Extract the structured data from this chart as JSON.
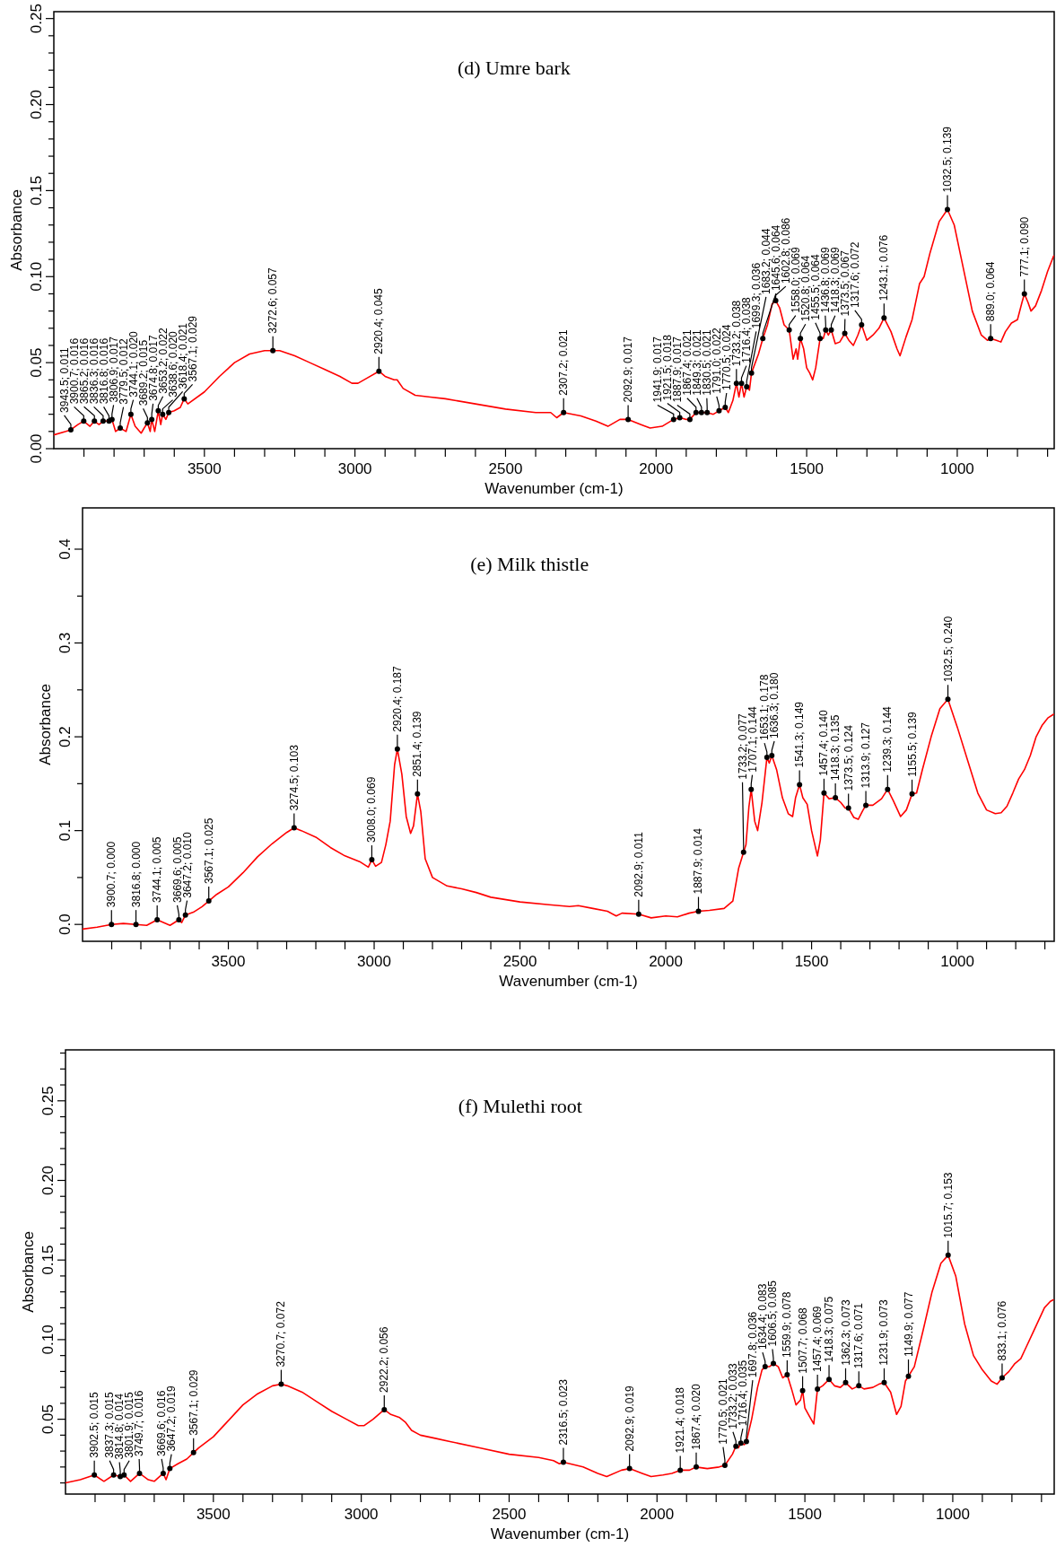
{
  "chart_data": [
    {
      "type": "line",
      "title": "(d) Umre bark",
      "xlabel": "Wavenumber (cm-1)",
      "ylabel": "Absorbance",
      "xlim": [
        4000,
        678
      ],
      "ylim": [
        0,
        0.254
      ],
      "xticks": [
        {
          "value": 3900,
          "label": null
        },
        {
          "value": 3800,
          "label": null
        },
        {
          "value": 3700,
          "label": null
        },
        {
          "value": 3600,
          "label": null
        },
        3500,
        {
          "value": 3400,
          "label": null
        },
        {
          "value": 3300,
          "label": null
        },
        {
          "value": 3200,
          "label": null
        },
        {
          "value": 3100,
          "label": null
        },
        3000,
        {
          "value": 2900,
          "label": null
        },
        {
          "value": 2800,
          "label": null
        },
        {
          "value": 2700,
          "label": null
        },
        {
          "value": 2600,
          "label": null
        },
        2500,
        {
          "value": 2400,
          "label": null
        },
        {
          "value": 2300,
          "label": null
        },
        {
          "value": 2200,
          "label": null
        },
        {
          "value": 2100,
          "label": null
        },
        2000,
        {
          "value": 1900,
          "label": null
        },
        {
          "value": 1800,
          "label": null
        },
        {
          "value": 1700,
          "label": null
        },
        {
          "value": 1600,
          "label": null
        },
        1500,
        {
          "value": 1400,
          "label": null
        },
        {
          "value": 1300,
          "label": null
        },
        {
          "value": 1200,
          "label": null
        },
        {
          "value": 1100,
          "label": null
        },
        1000,
        {
          "value": 900,
          "label": null
        },
        {
          "value": 800,
          "label": null
        },
        {
          "value": 700,
          "label": null
        }
      ],
      "yticks": [
        {
          "value": 0,
          "label": "0.00"
        },
        {
          "value": 0.01,
          "label": null
        },
        {
          "value": 0.02,
          "label": null
        },
        {
          "value": 0.03,
          "label": null
        },
        {
          "value": 0.04,
          "label": null
        },
        {
          "value": 0.05,
          "label": "0.05"
        },
        {
          "value": 0.06,
          "label": null
        },
        {
          "value": 0.07,
          "label": null
        },
        {
          "value": 0.08,
          "label": null
        },
        {
          "value": 0.09,
          "label": null
        },
        {
          "value": 0.1,
          "label": "0.10"
        },
        {
          "value": 0.11,
          "label": null
        },
        {
          "value": 0.12,
          "label": null
        },
        {
          "value": 0.13,
          "label": null
        },
        {
          "value": 0.14,
          "label": null
        },
        {
          "value": 0.15,
          "label": "0.15"
        },
        {
          "value": 0.16,
          "label": null
        },
        {
          "value": 0.17,
          "label": null
        },
        {
          "value": 0.18,
          "label": null
        },
        {
          "value": 0.19,
          "label": null
        },
        {
          "value": 0.2,
          "label": "0.20"
        },
        {
          "value": 0.21,
          "label": null
        },
        {
          "value": 0.22,
          "label": null
        },
        {
          "value": 0.23,
          "label": null
        },
        {
          "value": 0.24,
          "label": null
        },
        {
          "value": 0.25,
          "label": "0.25"
        }
      ],
      "series": [
        {
          "type": "line",
          "color": "#ff0000",
          "x": [
            4000,
            3960,
            3943.5,
            3920,
            3900.7,
            3880,
            3865.2,
            3850,
            3836.3,
            3816.8,
            3806.9,
            3795,
            3779.5,
            3760,
            3744.1,
            3730,
            3710,
            3700,
            3689.2,
            3680,
            3674.8,
            3665,
            3653.2,
            3645,
            3638.6,
            3628,
            3618.4,
            3600,
            3580,
            3567.1,
            3555,
            3500,
            3450,
            3400,
            3350,
            3300,
            3272.6,
            3250,
            3200,
            3150,
            3100,
            3050,
            3010,
            2990,
            2960,
            2920.4,
            2900,
            2870,
            2860,
            2840,
            2800,
            2750,
            2700,
            2600,
            2500,
            2400,
            2350,
            2330,
            2307.2,
            2250,
            2200,
            2160,
            2120,
            2092.9,
            2050,
            2020,
            1980,
            1941.9,
            1921.5,
            1900,
            1887.9,
            1867.4,
            1849.3,
            1830.5,
            1810,
            1791,
            1770.5,
            1760,
            1745,
            1733.2,
            1725,
            1716.4,
            1708,
            1699.3,
            1690,
            1683.2,
            1660,
            1645.6,
            1630,
            1615,
            1602.8,
            1590,
            1575,
            1558,
            1545,
            1535,
            1530,
            1520.8,
            1510,
            1500,
            1490,
            1480,
            1470,
            1455.5,
            1445,
            1436.8,
            1428,
            1418.3,
            1405,
            1390,
            1373.5,
            1360,
            1345,
            1330,
            1317.6,
            1300,
            1280,
            1260,
            1243.1,
            1220,
            1200,
            1190,
            1170,
            1150,
            1125,
            1110,
            1090,
            1060,
            1032.5,
            1010,
            980,
            950,
            920,
            900,
            889,
            870,
            855,
            840,
            820,
            800,
            785,
            777.1,
            765,
            755,
            740,
            720,
            700,
            680
          ],
          "values": [
            0.008,
            0.01,
            0.011,
            0.014,
            0.016,
            0.013,
            0.016,
            0.014,
            0.016,
            0.016,
            0.017,
            0.01,
            0.012,
            0.01,
            0.02,
            0.013,
            0.009,
            0.012,
            0.015,
            0.01,
            0.017,
            0.01,
            0.022,
            0.014,
            0.02,
            0.017,
            0.021,
            0.022,
            0.024,
            0.029,
            0.026,
            0.033,
            0.042,
            0.05,
            0.055,
            0.057,
            0.057,
            0.057,
            0.054,
            0.05,
            0.046,
            0.042,
            0.038,
            0.038,
            0.041,
            0.045,
            0.042,
            0.04,
            0.04,
            0.035,
            0.031,
            0.03,
            0.029,
            0.026,
            0.023,
            0.021,
            0.021,
            0.018,
            0.021,
            0.019,
            0.016,
            0.013,
            0.017,
            0.017,
            0.014,
            0.012,
            0.013,
            0.017,
            0.018,
            0.017,
            0.017,
            0.021,
            0.021,
            0.021,
            0.02,
            0.022,
            0.024,
            0.021,
            0.028,
            0.038,
            0.03,
            0.038,
            0.03,
            0.036,
            0.034,
            0.044,
            0.055,
            0.064,
            0.072,
            0.084,
            0.086,
            0.082,
            0.072,
            0.069,
            0.052,
            0.058,
            0.052,
            0.064,
            0.058,
            0.047,
            0.044,
            0.04,
            0.047,
            0.064,
            0.064,
            0.069,
            0.066,
            0.069,
            0.061,
            0.062,
            0.067,
            0.063,
            0.06,
            0.066,
            0.072,
            0.063,
            0.066,
            0.07,
            0.076,
            0.068,
            0.058,
            0.054,
            0.065,
            0.075,
            0.096,
            0.1,
            0.114,
            0.132,
            0.139,
            0.13,
            0.105,
            0.08,
            0.066,
            0.063,
            0.064,
            0.063,
            0.062,
            0.068,
            0.073,
            0.075,
            0.085,
            0.09,
            0.085,
            0.08,
            0.083,
            0.092,
            0.103,
            0.112
          ]
        },
        {
          "type": "scatter",
          "marker": "circle",
          "color": "#000000",
          "x": [
            3943.5,
            3900.7,
            3865.2,
            3836.3,
            3816.8,
            3806.9,
            3779.5,
            3744.1,
            3689.2,
            3674.8,
            3653.2,
            3638.6,
            3618.4,
            3567.1,
            3272.6,
            2920.4,
            2307.2,
            2092.9,
            1941.9,
            1921.5,
            1887.9,
            1867.4,
            1849.3,
            1830.5,
            1791.0,
            1770.5,
            1733.2,
            1716.4,
            1699.3,
            1683.2,
            1645.6,
            1602.8,
            1558.0,
            1520.8,
            1455.5,
            1436.8,
            1418.3,
            1373.5,
            1317.6,
            1243.1,
            1032.5,
            889.0,
            777.1
          ],
          "values": [
            0.011,
            0.016,
            0.016,
            0.016,
            0.016,
            0.017,
            0.012,
            0.02,
            0.015,
            0.017,
            0.022,
            0.02,
            0.021,
            0.029,
            0.057,
            0.045,
            0.021,
            0.017,
            0.017,
            0.018,
            0.017,
            0.021,
            0.021,
            0.021,
            0.022,
            0.024,
            0.038,
            0.038,
            0.036,
            0.044,
            0.064,
            0.086,
            0.069,
            0.064,
            0.064,
            0.069,
            0.069,
            0.067,
            0.072,
            0.076,
            0.139,
            0.064,
            0.09
          ],
          "value_labels": [
            "3943.5; 0.011",
            "3900.7; 0.016",
            "3865.2; 0.016",
            "3836.3; 0.016",
            "3816.8; 0.016",
            "3806.9; 0.017",
            "3779.5; 0.012",
            "3744.1; 0.020",
            "3689.2; 0.015",
            "3674.8; 0.017",
            "3653.2; 0.022",
            "3638.6; 0.020",
            "3618.4; 0.021",
            "3567.1; 0.029",
            "3272.6; 0.057",
            "2920.4; 0.045",
            "2307.2; 0.021",
            "2092.9; 0.017",
            "1941.9; 0.017",
            "1921.5; 0.018",
            "1887.9; 0.017",
            "1867.4; 0.021",
            "1849.3; 0.021",
            "1830.5; 0.021",
            "1791.0; 0.022",
            "1770.5; 0.024",
            "1733.2; 0.038",
            "1716.4; 0.038",
            "1699.3; 0.036",
            "1683.2; 0.044",
            "1645.6; 0.064",
            "1602.8; 0.086",
            "1558.0; 0.069",
            "1520.8; 0.064",
            "1455.5; 0.064",
            "1436.8; 0.069",
            "1418.3; 0.069",
            "1373.5; 0.067",
            "1317.6; 0.072",
            "1243.1; 0.076",
            "1032.5; 0.139",
            "889.0; 0.064",
            "777.1; 0.090"
          ]
        }
      ]
    },
    {
      "type": "line",
      "title": "(e) Milk thistle",
      "xlabel": "Wavenumber (cm-1)",
      "ylabel": "Absorbance",
      "xlim": [
        4000,
        668
      ],
      "ylim": [
        -0.018,
        0.444
      ],
      "xticks": [
        {
          "value": 3900,
          "label": null
        },
        {
          "value": 3800,
          "label": null
        },
        {
          "value": 3700,
          "label": null
        },
        {
          "value": 3600,
          "label": null
        },
        3500,
        {
          "value": 3400,
          "label": null
        },
        {
          "value": 3300,
          "label": null
        },
        {
          "value": 3200,
          "label": null
        },
        {
          "value": 3100,
          "label": null
        },
        3000,
        {
          "value": 2900,
          "label": null
        },
        {
          "value": 2800,
          "label": null
        },
        {
          "value": 2700,
          "label": null
        },
        {
          "value": 2600,
          "label": null
        },
        2500,
        {
          "value": 2400,
          "label": null
        },
        {
          "value": 2300,
          "label": null
        },
        {
          "value": 2200,
          "label": null
        },
        {
          "value": 2100,
          "label": null
        },
        2000,
        {
          "value": 1900,
          "label": null
        },
        {
          "value": 1800,
          "label": null
        },
        {
          "value": 1700,
          "label": null
        },
        {
          "value": 1600,
          "label": null
        },
        1500,
        {
          "value": 1400,
          "label": null
        },
        {
          "value": 1300,
          "label": null
        },
        {
          "value": 1200,
          "label": null
        },
        {
          "value": 1100,
          "label": null
        },
        1000,
        {
          "value": 900,
          "label": null
        },
        {
          "value": 800,
          "label": null
        },
        {
          "value": 700,
          "label": null
        }
      ],
      "yticks": [
        {
          "value": 0,
          "label": "0.0"
        },
        {
          "value": 0.05,
          "label": null
        },
        0.1,
        {
          "value": 0.15,
          "label": null
        },
        0.2,
        {
          "value": 0.25,
          "label": null
        },
        0.3,
        {
          "value": 0.35,
          "label": null
        },
        0.4
      ],
      "series": [
        {
          "type": "line",
          "color": "#ff0000",
          "x": [
            4000,
            3950,
            3900.7,
            3860,
            3816.8,
            3780,
            3744.1,
            3700,
            3669.6,
            3660,
            3647.2,
            3620,
            3590,
            3567.1,
            3540,
            3500,
            3450,
            3400,
            3350,
            3300,
            3274.5,
            3250,
            3200,
            3150,
            3100,
            3050,
            3020,
            3008,
            2995,
            2975,
            2960,
            2945,
            2930,
            2920.4,
            2905,
            2890,
            2875,
            2865,
            2851.4,
            2840,
            2825,
            2800,
            2750,
            2700,
            2650,
            2600,
            2500,
            2400,
            2330,
            2300,
            2250,
            2200,
            2170,
            2150,
            2092.9,
            2050,
            2000,
            1960,
            1920,
            1887.9,
            1850,
            1800,
            1770,
            1750,
            1733.2,
            1725,
            1715,
            1707.1,
            1695,
            1685,
            1670,
            1653.1,
            1645,
            1636.3,
            1620,
            1600,
            1580,
            1565,
            1555,
            1541.3,
            1530,
            1515,
            1500,
            1480,
            1470,
            1457.4,
            1440,
            1418.3,
            1400,
            1385,
            1373.5,
            1355,
            1340,
            1325,
            1313.9,
            1290,
            1260,
            1239.3,
            1220,
            1195,
            1175,
            1155.5,
            1140,
            1120,
            1090,
            1060,
            1032.5,
            1000,
            960,
            930,
            900,
            870,
            850,
            830,
            810,
            790,
            770,
            750,
            730,
            710,
            690,
            670
          ],
          "values": [
            -0.005,
            -0.003,
            0.0,
            0.001,
            0.0,
            -0.001,
            0.005,
            -0.001,
            0.005,
            0.002,
            0.01,
            0.013,
            0.019,
            0.025,
            0.032,
            0.04,
            0.055,
            0.072,
            0.086,
            0.098,
            0.103,
            0.1,
            0.093,
            0.082,
            0.073,
            0.067,
            0.061,
            0.069,
            0.062,
            0.066,
            0.085,
            0.11,
            0.17,
            0.187,
            0.16,
            0.115,
            0.097,
            0.105,
            0.139,
            0.12,
            0.07,
            0.05,
            0.041,
            0.038,
            0.034,
            0.029,
            0.024,
            0.021,
            0.019,
            0.02,
            0.017,
            0.014,
            0.009,
            0.012,
            0.011,
            0.007,
            0.009,
            0.008,
            0.012,
            0.014,
            0.015,
            0.017,
            0.025,
            0.06,
            0.077,
            0.085,
            0.125,
            0.144,
            0.11,
            0.1,
            0.13,
            0.178,
            0.172,
            0.18,
            0.165,
            0.135,
            0.118,
            0.115,
            0.135,
            0.149,
            0.135,
            0.128,
            0.1,
            0.073,
            0.09,
            0.14,
            0.134,
            0.135,
            0.13,
            0.124,
            0.124,
            0.114,
            0.112,
            0.121,
            0.127,
            0.127,
            0.134,
            0.144,
            0.132,
            0.115,
            0.122,
            0.139,
            0.14,
            0.165,
            0.2,
            0.23,
            0.24,
            0.21,
            0.17,
            0.14,
            0.122,
            0.118,
            0.119,
            0.126,
            0.14,
            0.155,
            0.165,
            0.18,
            0.2,
            0.212,
            0.22,
            0.224
          ]
        },
        {
          "type": "scatter",
          "marker": "circle",
          "color": "#000000",
          "x": [
            3900.7,
            3816.8,
            3744.1,
            3669.6,
            3647.2,
            3567.1,
            3274.5,
            3008.0,
            2920.4,
            2851.4,
            2092.9,
            1887.9,
            1733.2,
            1707.1,
            1653.1,
            1636.3,
            1541.3,
            1457.4,
            1418.3,
            1373.5,
            1313.9,
            1239.3,
            1155.5,
            1032.5
          ],
          "values": [
            0.0,
            0.0,
            0.005,
            0.005,
            0.01,
            0.025,
            0.103,
            0.069,
            0.187,
            0.139,
            0.011,
            0.014,
            0.077,
            0.144,
            0.178,
            0.18,
            0.149,
            0.14,
            0.135,
            0.124,
            0.127,
            0.144,
            0.139,
            0.24
          ],
          "value_labels": [
            "3900.7; 0.000",
            "3816.8; 0.000",
            "3744.1; 0.005",
            "3669.6; 0.005",
            "3647.2; 0.010",
            "3567.1; 0.025",
            "3274.5; 0.103",
            "3008.0; 0.069",
            "2920.4; 0.187",
            "2851.4; 0.139",
            "2092.9; 0.011",
            "1887.9; 0.014",
            "1733.2; 0.077",
            "1707.1; 0.144",
            "1653.1; 0.178",
            "1636.3; 0.180",
            "1541.3; 0.149",
            "1457.4; 0.140",
            "1418.3; 0.135",
            "1373.5; 0.124",
            "1313.9; 0.127",
            "1239.3; 0.144",
            "1155.5; 0.139",
            "1032.5; 0.240"
          ]
        }
      ]
    },
    {
      "type": "line",
      "title": "(f) Mulethi root",
      "xlabel": "Wavenumber (cm-1)",
      "ylabel": "Absorbance",
      "xlim": [
        4000,
        657
      ],
      "ylim": [
        0.003,
        0.282
      ],
      "xticks": [
        {
          "value": 3900,
          "label": null
        },
        {
          "value": 3800,
          "label": null
        },
        {
          "value": 3700,
          "label": null
        },
        {
          "value": 3600,
          "label": null
        },
        3500,
        {
          "value": 3400,
          "label": null
        },
        {
          "value": 3300,
          "label": null
        },
        {
          "value": 3200,
          "label": null
        },
        {
          "value": 3100,
          "label": null
        },
        3000,
        {
          "value": 2900,
          "label": null
        },
        {
          "value": 2800,
          "label": null
        },
        {
          "value": 2700,
          "label": null
        },
        {
          "value": 2600,
          "label": null
        },
        2500,
        {
          "value": 2400,
          "label": null
        },
        {
          "value": 2300,
          "label": null
        },
        {
          "value": 2200,
          "label": null
        },
        {
          "value": 2100,
          "label": null
        },
        2000,
        {
          "value": 1900,
          "label": null
        },
        {
          "value": 1800,
          "label": null
        },
        {
          "value": 1700,
          "label": null
        },
        {
          "value": 1600,
          "label": null
        },
        1500,
        {
          "value": 1400,
          "label": null
        },
        {
          "value": 1300,
          "label": null
        },
        {
          "value": 1200,
          "label": null
        },
        {
          "value": 1100,
          "label": null
        },
        1000,
        {
          "value": 900,
          "label": null
        },
        {
          "value": 800,
          "label": null
        },
        {
          "value": 700,
          "label": null
        }
      ],
      "yticks": [
        {
          "value": 0.01,
          "label": null
        },
        {
          "value": 0.02,
          "label": null
        },
        {
          "value": 0.03,
          "label": null
        },
        {
          "value": 0.04,
          "label": null
        },
        {
          "value": 0.05,
          "label": "0.05"
        },
        {
          "value": 0.06,
          "label": null
        },
        {
          "value": 0.07,
          "label": null
        },
        {
          "value": 0.08,
          "label": null
        },
        {
          "value": 0.09,
          "label": null
        },
        {
          "value": 0.1,
          "label": "0.10"
        },
        {
          "value": 0.11,
          "label": null
        },
        {
          "value": 0.12,
          "label": null
        },
        {
          "value": 0.13,
          "label": null
        },
        {
          "value": 0.14,
          "label": null
        },
        {
          "value": 0.15,
          "label": "0.15"
        },
        {
          "value": 0.16,
          "label": null
        },
        {
          "value": 0.17,
          "label": null
        },
        {
          "value": 0.18,
          "label": null
        },
        {
          "value": 0.19,
          "label": null
        },
        {
          "value": 0.2,
          "label": "0.20"
        },
        {
          "value": 0.21,
          "label": null
        },
        {
          "value": 0.22,
          "label": null
        },
        {
          "value": 0.23,
          "label": null
        },
        {
          "value": 0.24,
          "label": null
        },
        {
          "value": 0.25,
          "label": "0.25"
        },
        {
          "value": 0.26,
          "label": null
        },
        {
          "value": 0.27,
          "label": null
        },
        {
          "value": 0.28,
          "label": null
        }
      ],
      "series": [
        {
          "type": "line",
          "color": "#ff0000",
          "x": [
            4000,
            3950,
            3902.5,
            3870,
            3837.3,
            3814.8,
            3801.9,
            3780,
            3749.7,
            3720,
            3700,
            3669.6,
            3660,
            3647.2,
            3620,
            3590,
            3567.1,
            3550,
            3500,
            3450,
            3400,
            3350,
            3300,
            3270.7,
            3250,
            3200,
            3150,
            3100,
            3050,
            3010,
            2990,
            2960,
            2922.2,
            2900,
            2870,
            2850,
            2830,
            2800,
            2750,
            2700,
            2600,
            2500,
            2400,
            2350,
            2330,
            2316.5,
            2250,
            2200,
            2170,
            2120,
            2092.9,
            2050,
            2020,
            1980,
            1950,
            1921.4,
            1890,
            1867.4,
            1830,
            1790,
            1770.5,
            1745,
            1733.2,
            1725,
            1716.4,
            1705,
            1697.8,
            1680,
            1660,
            1645,
            1634.4,
            1620,
            1606.5,
            1590,
            1575,
            1559.9,
            1545,
            1530,
            1515,
            1507.7,
            1500,
            1485,
            1470,
            1457.4,
            1440,
            1418.3,
            1400,
            1380,
            1362.3,
            1340,
            1317.6,
            1300,
            1270,
            1250,
            1231.9,
            1210,
            1190,
            1175,
            1160,
            1149.9,
            1130,
            1100,
            1070,
            1040,
            1015.7,
            990,
            960,
            930,
            900,
            870,
            850,
            833.1,
            810,
            790,
            770,
            750,
            730,
            710,
            690,
            670,
            660
          ],
          "values": [
            0.01,
            0.012,
            0.015,
            0.011,
            0.015,
            0.014,
            0.015,
            0.011,
            0.016,
            0.012,
            0.011,
            0.016,
            0.012,
            0.019,
            0.022,
            0.025,
            0.029,
            0.032,
            0.039,
            0.049,
            0.059,
            0.066,
            0.071,
            0.072,
            0.071,
            0.067,
            0.061,
            0.055,
            0.05,
            0.046,
            0.046,
            0.05,
            0.056,
            0.053,
            0.051,
            0.048,
            0.043,
            0.04,
            0.038,
            0.036,
            0.032,
            0.028,
            0.026,
            0.024,
            0.022,
            0.023,
            0.02,
            0.016,
            0.014,
            0.018,
            0.019,
            0.016,
            0.014,
            0.015,
            0.016,
            0.018,
            0.018,
            0.02,
            0.019,
            0.02,
            0.021,
            0.028,
            0.033,
            0.032,
            0.035,
            0.034,
            0.036,
            0.05,
            0.07,
            0.081,
            0.083,
            0.083,
            0.085,
            0.083,
            0.076,
            0.078,
            0.069,
            0.059,
            0.062,
            0.068,
            0.057,
            0.052,
            0.047,
            0.069,
            0.071,
            0.075,
            0.071,
            0.07,
            0.073,
            0.069,
            0.071,
            0.069,
            0.07,
            0.072,
            0.073,
            0.067,
            0.053,
            0.058,
            0.074,
            0.077,
            0.083,
            0.106,
            0.13,
            0.148,
            0.153,
            0.14,
            0.11,
            0.09,
            0.081,
            0.074,
            0.072,
            0.076,
            0.08,
            0.085,
            0.088,
            0.096,
            0.104,
            0.112,
            0.12,
            0.124,
            0.125
          ]
        },
        {
          "type": "scatter",
          "marker": "circle",
          "color": "#000000",
          "x": [
            3902.5,
            3837.3,
            3814.8,
            3801.9,
            3749.7,
            3669.6,
            3647.2,
            3567.1,
            3270.7,
            2922.2,
            2316.5,
            2092.9,
            1921.4,
            1867.4,
            1770.5,
            1733.2,
            1716.4,
            1697.8,
            1634.4,
            1606.5,
            1559.9,
            1507.7,
            1457.4,
            1418.3,
            1362.3,
            1317.6,
            1231.9,
            1149.9,
            1015.7,
            833.1
          ],
          "values": [
            0.015,
            0.015,
            0.014,
            0.015,
            0.016,
            0.016,
            0.019,
            0.029,
            0.072,
            0.056,
            0.023,
            0.019,
            0.018,
            0.02,
            0.021,
            0.033,
            0.035,
            0.036,
            0.083,
            0.085,
            0.078,
            0.068,
            0.069,
            0.075,
            0.073,
            0.071,
            0.073,
            0.077,
            0.153,
            0.076
          ],
          "value_labels": [
            "3902.5; 0.015",
            "3837.3; 0.015",
            "3814.8; 0.014",
            "3801.9; 0.015",
            "3749.7; 0.016",
            "3669.6; 0.016",
            "3647.2; 0.019",
            "3567.1; 0.029",
            "3270.7; 0.072",
            "2922.2; 0.056",
            "2316.5; 0.023",
            "2092.9; 0.019",
            "1921.4; 0.018",
            "1867.4; 0.020",
            "1770.5; 0.021",
            "1733.2; 0.033",
            "1716.4; 0.035",
            "1697.8; 0.036",
            "1634.4; 0.083",
            "1606.5; 0.085",
            "1559.9; 0.078",
            "1507.7; 0.068",
            "1457.4; 0.069",
            "1418.3; 0.075",
            "1362.3; 0.073",
            "1317.6; 0.071",
            "1231.9; 0.073",
            "1149.9; 0.077",
            "1015.7; 0.153",
            "833.1; 0.076"
          ]
        }
      ]
    }
  ]
}
